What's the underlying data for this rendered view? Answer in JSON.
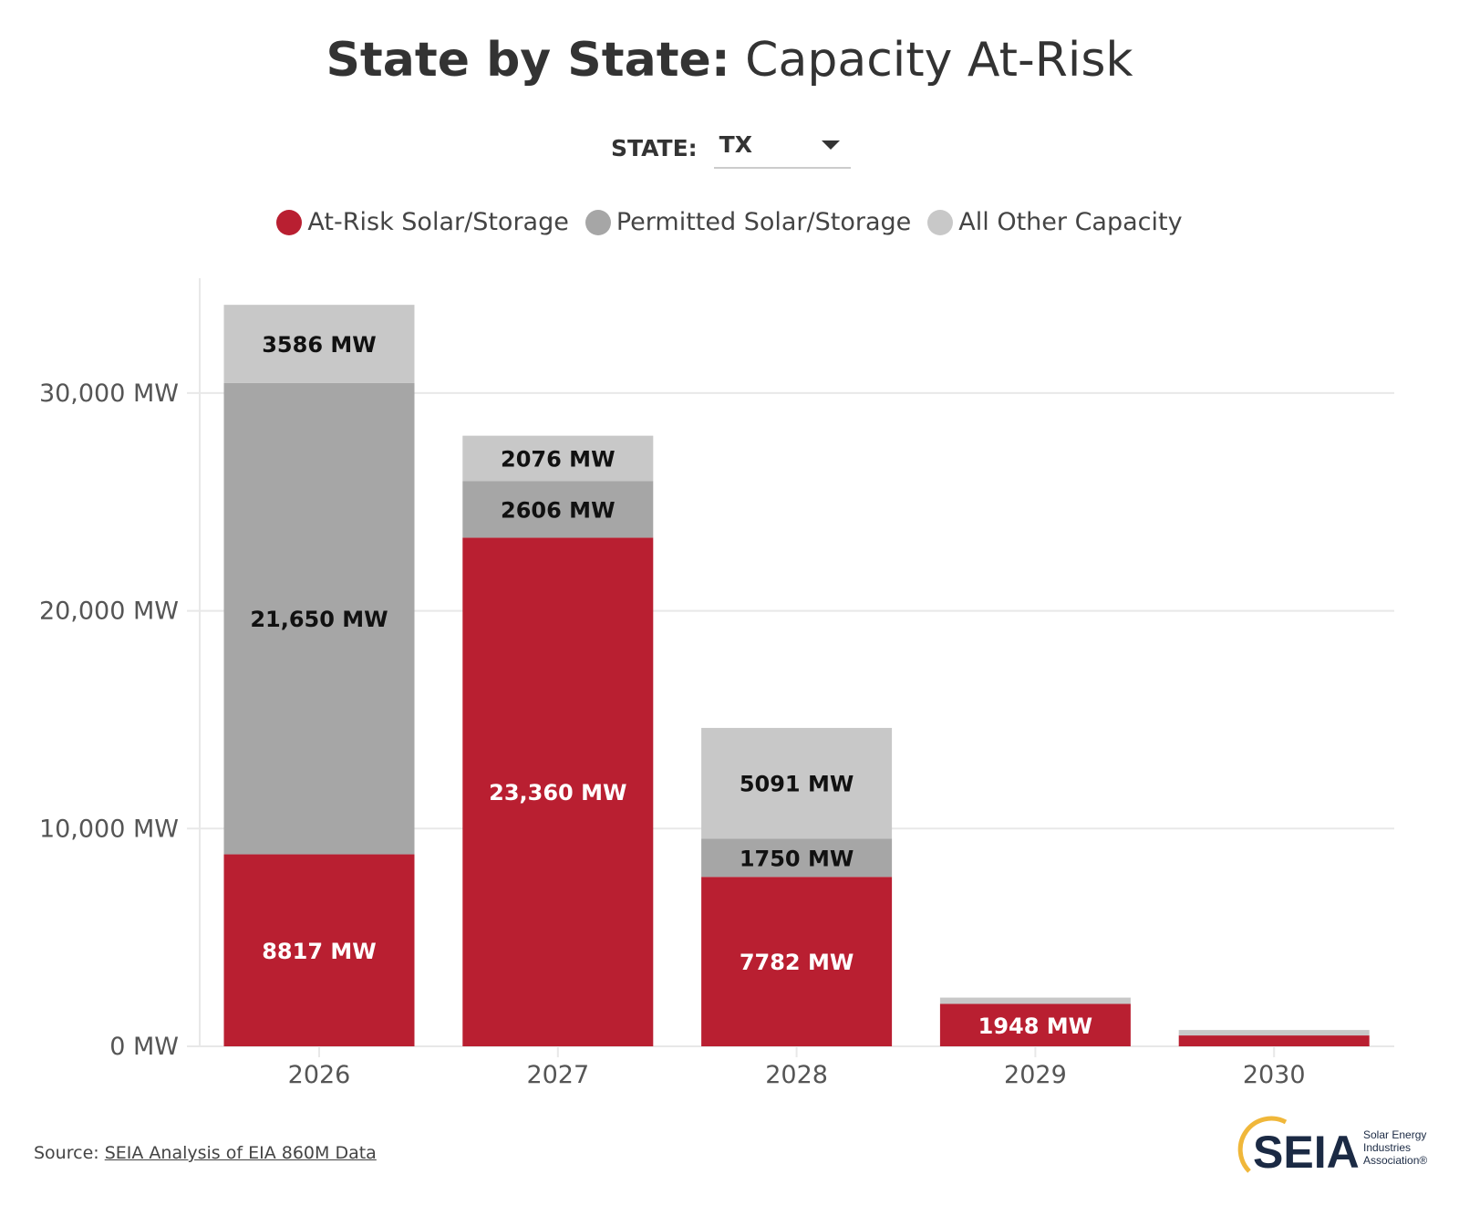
{
  "title": {
    "bold": "State by State:",
    "light": "Capacity At-Risk"
  },
  "state_selector": {
    "label": "STATE:",
    "value": "TX"
  },
  "colors": {
    "at_risk": "#B91F31",
    "permitted": "#A6A6A6",
    "other": "#C8C8C8"
  },
  "source": {
    "prefix": "Source:",
    "link_text": "SEIA Analysis of EIA 860M Data"
  },
  "logo": {
    "text": "SEIA",
    "subtitle_line1": "Solar Energy",
    "subtitle_line2": "Industries",
    "subtitle_line3": "Association®"
  },
  "chart_data": {
    "type": "bar",
    "stacked": true,
    "categories": [
      "2026",
      "2027",
      "2028",
      "2029",
      "2030"
    ],
    "series": [
      {
        "name": "At-Risk Solar/Storage",
        "values": [
          8817,
          23360,
          7782,
          1948,
          500
        ],
        "labels": [
          "8817 MW",
          "23,360 MW",
          "7782 MW",
          "1948 MW",
          ""
        ]
      },
      {
        "name": "Permitted Solar/Storage",
        "values": [
          21650,
          2606,
          1750,
          0,
          0
        ],
        "labels": [
          "21,650 MW",
          "2606 MW",
          "1750 MW",
          "",
          ""
        ]
      },
      {
        "name": "All Other Capacity",
        "values": [
          3586,
          2076,
          5091,
          290,
          250
        ],
        "labels": [
          "3586 MW",
          "2076 MW",
          "5091 MW",
          "",
          ""
        ]
      }
    ],
    "yticks": [
      0,
      10000,
      20000,
      30000
    ],
    "ytick_labels": [
      "0 MW",
      "10,000 MW",
      "20,000 MW",
      "30,000 MW"
    ],
    "ylim": [
      0,
      35000
    ],
    "grid": true,
    "legend_position": "top-center"
  }
}
